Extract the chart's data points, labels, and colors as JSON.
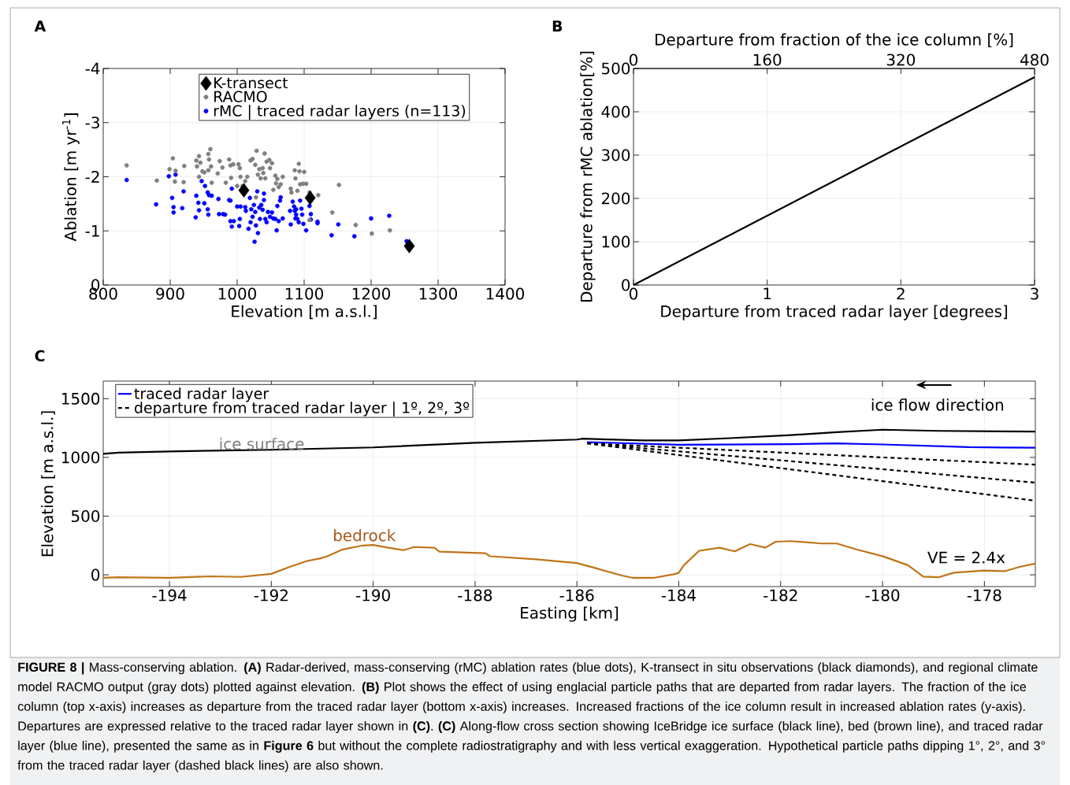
{
  "chart_data": [
    {
      "type": "scatter",
      "title": "A",
      "xlabel": "Elevation [m a.s.l.]",
      "ylabel": "Ablation [m yr$^{-1}$]",
      "xlim": [
        800,
        1400
      ],
      "ylim": [
        0,
        -4
      ],
      "xticks": [
        800,
        900,
        1000,
        1100,
        1200,
        1300,
        1400
      ],
      "yticks": [
        0,
        -1,
        -2,
        -3,
        -4
      ],
      "grid": true,
      "legend": "top",
      "series": [
        {
          "name": "K-transect",
          "color": "#000000",
          "marker": "diamond",
          "x": [
            1010,
            1109,
            1257
          ],
          "values": [
            -1.75,
            -1.61,
            -0.72
          ]
        },
        {
          "name": "RACMO",
          "color": "#808080",
          "marker": "circle",
          "x": [
            835,
            880,
            899,
            904,
            908,
            907,
            920,
            921,
            939,
            940,
            943,
            945,
            943,
            948,
            951,
            957,
            957,
            958,
            960,
            961,
            962,
            971,
            974,
            978,
            983,
            988,
            990,
            991,
            994,
            1002,
            1004,
            1005,
            1000,
            1008,
            1012,
            1015,
            1020,
            1023,
            1027,
            1029,
            1031,
            1033,
            1035,
            1038,
            1039,
            1041,
            1042,
            1044,
            1048,
            1049,
            1052,
            1054,
            1057,
            1058,
            1060,
            1062,
            1065,
            1068,
            1028,
            1080,
            1081,
            1086,
            1087,
            1092,
            1093,
            1094,
            1098,
            1100,
            1103,
            1090,
            1108,
            1121,
            1142,
            1152,
            1177,
            1201,
            1228,
            1108
          ],
          "values": [
            -2.21,
            -1.93,
            -2.14,
            -2.34,
            -2.11,
            -1.91,
            -1.9,
            -2.2,
            -2.3,
            -2.19,
            -2.38,
            -2.26,
            -2.0,
            -2.1,
            -2.08,
            -2.42,
            -2.12,
            -2.32,
            -2.51,
            -2.19,
            -1.89,
            -2.06,
            -2.29,
            -2.17,
            -1.89,
            -2.32,
            -2.21,
            -1.98,
            -2.23,
            -2.23,
            -2.16,
            -2.0,
            -1.83,
            -1.83,
            -1.92,
            -2.0,
            -2.3,
            -2.33,
            -2.22,
            -2.48,
            -2.04,
            -2.14,
            -1.97,
            -2.16,
            -2.07,
            -2.43,
            -1.97,
            -2.28,
            -2.31,
            -2.16,
            -2.25,
            -1.76,
            -2.02,
            -1.88,
            -1.96,
            -1.81,
            -1.86,
            -2.0,
            -1.62,
            -1.78,
            -1.71,
            -2.12,
            -1.97,
            -2.24,
            -2.1,
            -1.86,
            -1.87,
            -2.09,
            -1.87,
            -1.74,
            -1.71,
            -1.66,
            -1.34,
            -1.85,
            -1.11,
            -0.95,
            -1.01,
            -1.2
          ]
        },
        {
          "name": "rMC | traced radar layers (n=113)",
          "color": "#0000ff",
          "marker": "circle",
          "x": [
            835,
            879,
            898,
            908,
            903,
            905,
            905,
            918,
            920,
            938,
            939,
            942,
            943,
            947,
            951,
            952,
            956,
            956,
            957,
            958,
            962,
            972,
            973,
            979,
            982,
            988,
            990,
            992,
            990,
            992,
            995,
            1000,
            1003,
            1004,
            1005,
            1012,
            1013,
            1017,
            1019,
            1020,
            1021,
            1023,
            1025,
            1026,
            1027,
            1028,
            1030,
            1031,
            1033,
            1034,
            1036,
            1038,
            1040,
            1040,
            1042,
            1044,
            1046,
            1049,
            1052,
            1054,
            1057,
            1059,
            1060,
            1062,
            1064,
            1065,
            1068,
            1079,
            1080,
            1083,
            1085,
            1086,
            1087,
            1088,
            1088,
            1090,
            1092,
            1094,
            1096,
            1097,
            1099,
            1103,
            1108,
            1110,
            1110,
            1120,
            1120,
            1141,
            1151,
            1175,
            1200,
            1227,
            1253
          ],
          "values": [
            -1.94,
            -1.49,
            -2.01,
            -2.04,
            -1.61,
            -1.44,
            -1.34,
            -1.42,
            -1.73,
            -1.25,
            -1.65,
            -1.52,
            -1.38,
            -1.92,
            -1.51,
            -1.83,
            -1.71,
            -1.4,
            -1.3,
            -1.66,
            -1.65,
            -1.59,
            -1.31,
            -1.31,
            -1.3,
            -1.57,
            -1.56,
            -1.78,
            -1.18,
            -1.08,
            -1.18,
            -1.45,
            -1.09,
            -1.22,
            -1.45,
            -1.44,
            -1.37,
            -1.04,
            -1.61,
            -1.16,
            -1.4,
            -1.26,
            -1.48,
            -0.8,
            -1.35,
            -1.1,
            -1.73,
            -0.96,
            -1.43,
            -1.22,
            -1.48,
            -1.39,
            -1.69,
            -1.57,
            -1.22,
            -1.16,
            -1.35,
            -1.26,
            -1.34,
            -1.23,
            -1.22,
            -1.01,
            -1.46,
            -1.18,
            -1.56,
            -1.62,
            -1.23,
            -1.37,
            -1.12,
            -1.54,
            -1.45,
            -1.37,
            -1.23,
            -1.3,
            -1.4,
            -1.22,
            -1.16,
            -1.56,
            -1.41,
            -1.3,
            -1.13,
            -1.01,
            -1.46,
            -1.31,
            -1.21,
            -1.14,
            -1.17,
            -0.92,
            -1.12,
            -0.9,
            -1.23,
            -1.28,
            -0.81
          ]
        }
      ]
    },
    {
      "type": "line",
      "title": "B",
      "xlabel": "Departure from traced radar layer [degrees]",
      "ylabel": "Departure from rMC ablation[%]",
      "x2label": "Departure from fraction of the ice column [%]",
      "xlim": [
        0,
        3
      ],
      "xticks": [
        0,
        1,
        2,
        3
      ],
      "x2lim": [
        0,
        480
      ],
      "x2ticks": [
        0,
        160,
        320,
        480
      ],
      "ylim": [
        0,
        500
      ],
      "yticks": [
        0,
        100,
        200,
        300,
        400,
        500
      ],
      "grid": true,
      "series": [
        {
          "color": "#000000",
          "x": [
            0,
            3
          ],
          "values": [
            0,
            480
          ]
        }
      ]
    },
    {
      "type": "line",
      "title": "C",
      "xlabel": "Easting [km]",
      "ylabel": "Elevation [m a.s.l.]",
      "xlim": [
        -195.3,
        -177
      ],
      "ylim": [
        -100,
        1650
      ],
      "xticks": [
        -194,
        -192,
        -190,
        -188,
        -186,
        -184,
        -182,
        -180,
        -178
      ],
      "yticks": [
        0,
        500,
        1000,
        1500
      ],
      "grid": true,
      "legend": "top left",
      "annotations": [
        "ice flow direction",
        "VE = 2.4x",
        "**FIGURE 8 |** Mass-conserving ablation. **(A)** Radar-derived, mass-conserving (rMC) ablation rates (blue dots), K-transect in situ observations (black diamonds), and regional climate model RACMO output (gray dots) plotted against elevation. **(B)** Plot shows the effect of using englacial particle paths that are departed from radar layers. The fraction of the ice column (top x-axis) increases as departure from the traced radar layer (bottom x-axis) increases. Increased fractions of the ice column result in increased ablation rates (y-axis). Departures are expressed relative to the traced radar layer shown in **(C)**. **(C)** Along-flow cross section showing IceBridge ice surface (black line), bed (brown line), and traced radar layer (blue line), presented the same as in **Figure 6** but without the complete radiostratigraphy and with less vertical exaggeration. Hypothetical particle paths dipping 1°, 2°, and 3° from the traced radar layer (dashed black lines) are also shown."
      ],
      "series": [
        {
          "name": "ice surface",
          "color": "#000000",
          "x": [
            -195.3,
            -195.0,
            -194,
            -192,
            -190,
            -188,
            -186,
            -185.9,
            -184.7,
            -184,
            -183,
            -181.8,
            -180.9,
            -180,
            -178.9,
            -177
          ],
          "values": [
            1031,
            1040,
            1051,
            1065,
            1085,
            1125,
            1152,
            1159,
            1144,
            1144,
            1164,
            1190,
            1215,
            1236,
            1226,
            1220
          ]
        },
        {
          "name": "bedrock",
          "color": "#c07418",
          "x": [
            -195.3,
            -195.0,
            -194,
            -193.2,
            -192.6,
            -192,
            -191.65,
            -191.3,
            -191.05,
            -190.9,
            -190.6,
            -190.2,
            -190,
            -189.7,
            -189.4,
            -189.2,
            -188.8,
            -188.7,
            -187.8,
            -187.7,
            -186.8,
            -186,
            -185.6,
            -185.1,
            -184.9,
            -184.5,
            -184.1,
            -184,
            -183.9,
            -183.6,
            -183.2,
            -182.9,
            -182.6,
            -182.3,
            -182.1,
            -181.8,
            -181.2,
            -180.9,
            -180.5,
            -180,
            -179.5,
            -179.2,
            -178.9,
            -178.6,
            -178,
            -177.6,
            -177.3,
            -177
          ],
          "values": [
            -25,
            -21,
            -26,
            -13,
            -18,
            8,
            66,
            118,
            139,
            158,
            216,
            250,
            255,
            231,
            210,
            237,
            231,
            197,
            184,
            158,
            132,
            100,
            53,
            -8,
            -26,
            -26,
            5,
            18,
            82,
            205,
            231,
            200,
            262,
            231,
            282,
            287,
            267,
            267,
            215,
            159,
            82,
            -15,
            -21,
            18,
            36,
            31,
            69,
            95
          ]
        },
        {
          "name": "traced radar layer",
          "color": "#0000ff",
          "x": [
            -185.8,
            -184,
            -181.8,
            -180.9,
            -180,
            -178.3,
            -177
          ],
          "values": [
            1130,
            1108,
            1113,
            1120,
            1110,
            1087,
            1082
          ]
        },
        {
          "name": "departure from traced radar layer | 1º, 2º, 3º",
          "color": "#000000",
          "line_style": "dashed",
          "x": [
            -185.8,
            -177
          ],
          "values": [
            1120,
            938
          ]
        },
        {
          "color": "#000000",
          "line_style": "dashed",
          "x": [
            -185.8,
            -177
          ],
          "values": [
            1120,
            785
          ]
        },
        {
          "color": "#000000",
          "line_style": "dashed",
          "x": [
            -185.8,
            -177
          ],
          "values": [
            1120,
            631
          ]
        }
      ]
    }
  ]
}
